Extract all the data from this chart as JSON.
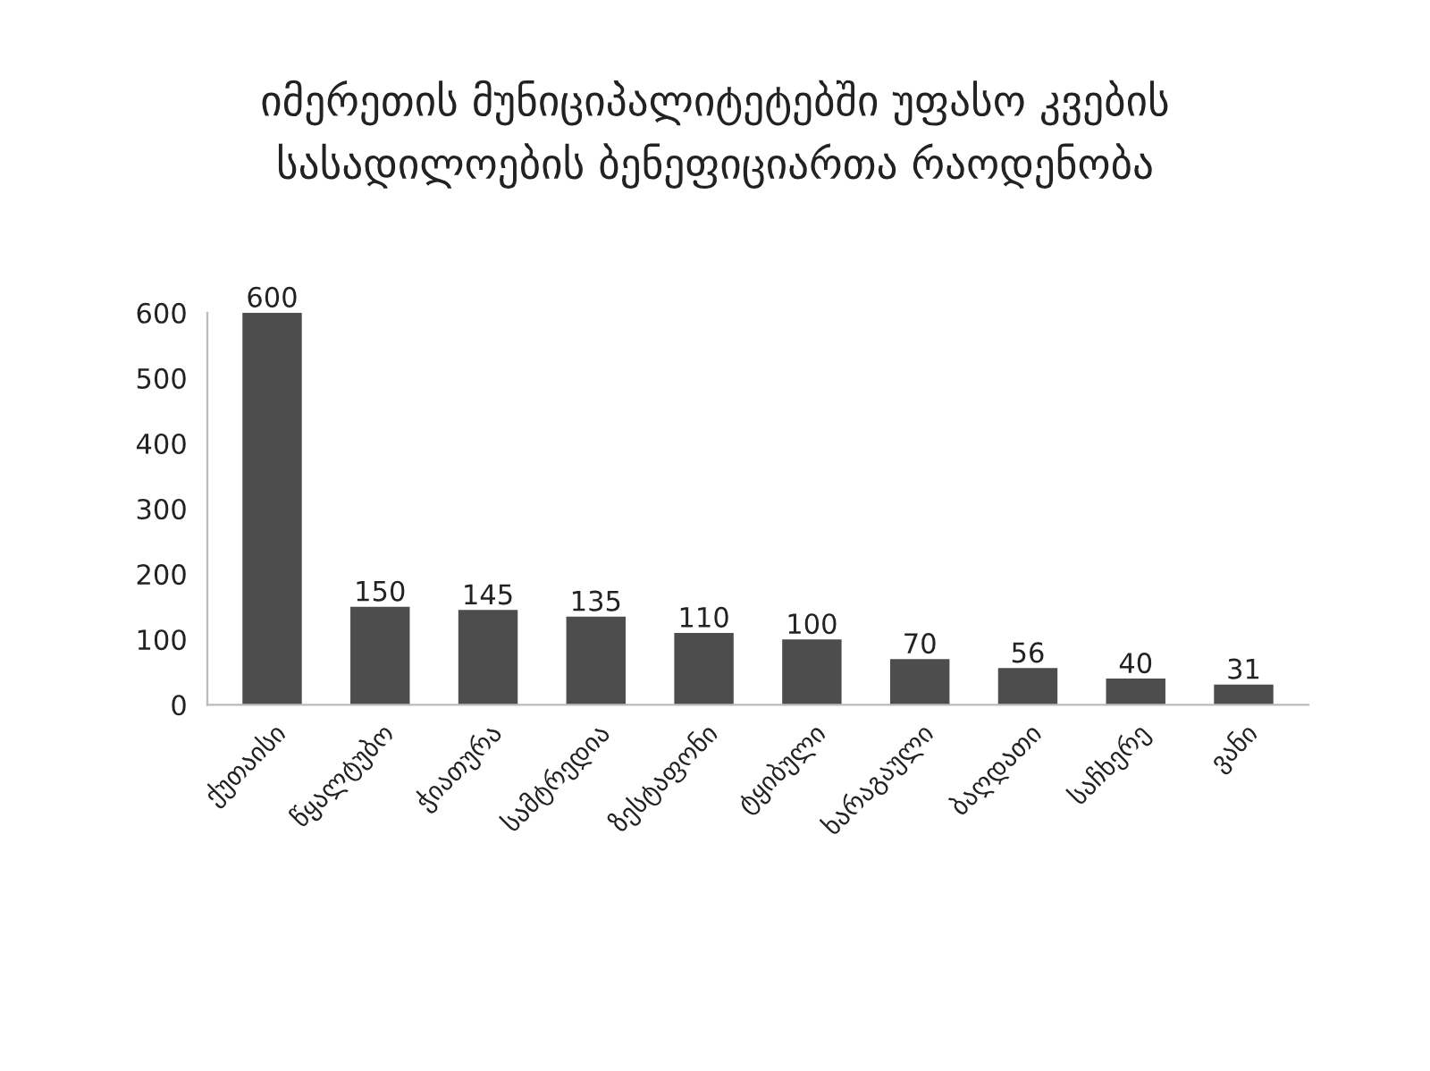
{
  "chart_data": {
    "type": "bar",
    "title": "იმერეთის მუნიციპალიტეტებში უფასო კვების\nსასადილოების ბენეფიციართა რაოდენობა",
    "categories": [
      "ქუთაისი",
      "წყალტუბო",
      "ჭიათურა",
      "სამტრედია",
      "ზესტაფონი",
      "ტყიბული",
      "ხარაგაული",
      "ბაღდათი",
      "საჩხერე",
      "ვანი"
    ],
    "values": [
      600,
      150,
      145,
      135,
      110,
      100,
      70,
      56,
      40,
      31
    ],
    "color": "#4d4d4d",
    "ylim": [
      0,
      600
    ],
    "yticks": [
      0,
      100,
      200,
      300,
      400,
      500,
      600
    ],
    "grid": false,
    "legend": false,
    "data_labels": true
  }
}
